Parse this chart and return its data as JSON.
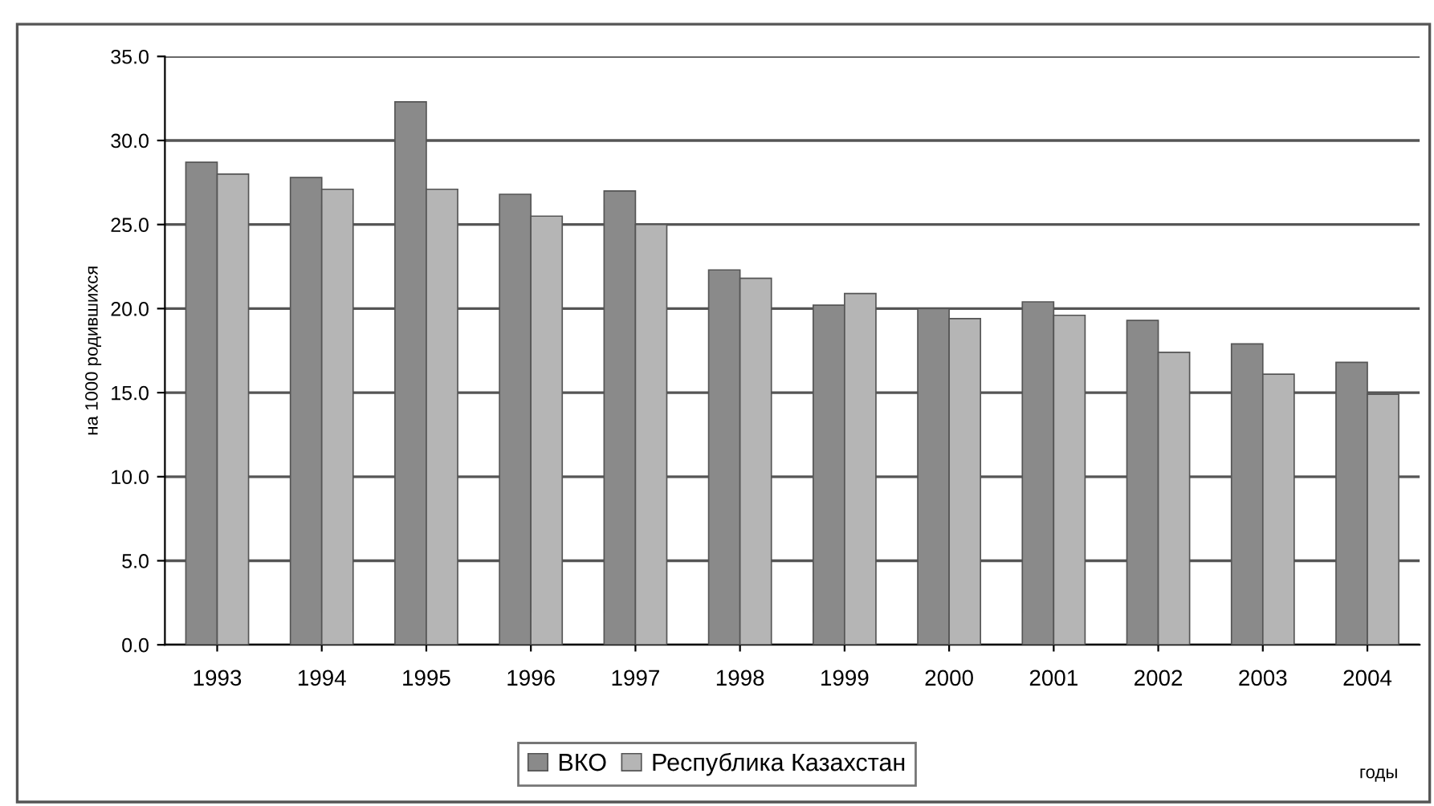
{
  "chart_data": {
    "type": "bar",
    "ylabel": "на 1000 родившихся",
    "xlabel": "годы",
    "categories": [
      "1993",
      "1994",
      "1995",
      "1996",
      "1997",
      "1998",
      "1999",
      "2000",
      "2001",
      "2002",
      "2003",
      "2004"
    ],
    "series": [
      {
        "name": "ВКО",
        "color": "#8a8a8a",
        "values": [
          28.7,
          27.8,
          32.3,
          26.8,
          27.0,
          22.3,
          20.2,
          20.0,
          20.4,
          19.3,
          17.9,
          16.8
        ]
      },
      {
        "name": "Республика Казахстан",
        "color": "#b5b5b5",
        "values": [
          28.0,
          27.1,
          27.1,
          25.5,
          25.0,
          21.8,
          20.9,
          19.4,
          19.6,
          17.4,
          16.1,
          14.9
        ]
      }
    ],
    "ylim": [
      0,
      35
    ],
    "yticks": [
      {
        "value": 0,
        "label": "0.0"
      },
      {
        "value": 5,
        "label": "5.0"
      },
      {
        "value": 10,
        "label": "10.0"
      },
      {
        "value": 15,
        "label": "15.0"
      },
      {
        "value": 20,
        "label": "20.0"
      },
      {
        "value": 25,
        "label": "25.0"
      },
      {
        "value": 30,
        "label": "30.0"
      },
      {
        "value": 35,
        "label": "35.0"
      }
    ],
    "grid": "y",
    "legend": "bottom"
  }
}
